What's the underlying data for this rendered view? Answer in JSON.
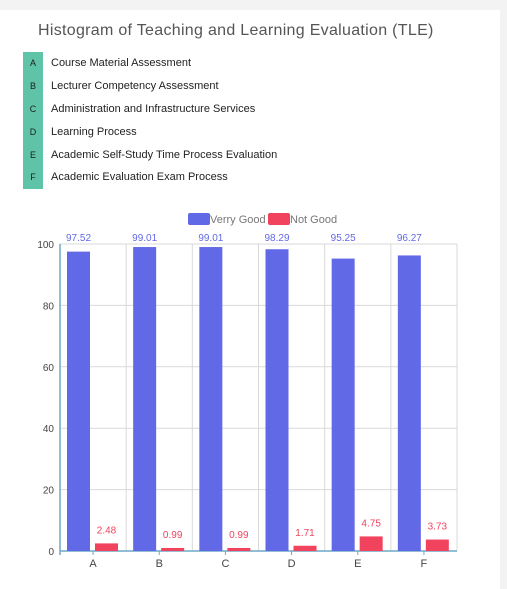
{
  "title": "Histogram of Teaching and Learning Evaluation (TLE)",
  "legend_table": [
    {
      "letter": "A",
      "text": "Course Material Assessment"
    },
    {
      "letter": "B",
      "text": "Lecturer Competency Assessment"
    },
    {
      "letter": "C",
      "text": "Administration and Infrastructure Services"
    },
    {
      "letter": "D",
      "text": "Learning Process"
    },
    {
      "letter": "E",
      "text": "Academic Self-Study Time Process Evaluation"
    },
    {
      "letter": "F",
      "text": "Academic Evaluation Exam Process"
    }
  ],
  "colors": {
    "very_good": "#6269e6",
    "not_good": "#f2435e",
    "legend_letter_bg": "#5fc3a8",
    "grid": "#d9d9d9",
    "axis": "#6fa9c7"
  },
  "chart_data": {
    "type": "bar",
    "categories": [
      "A",
      "B",
      "C",
      "D",
      "E",
      "F"
    ],
    "series": [
      {
        "name": "Verry Good",
        "values": [
          97.52,
          99.01,
          99.01,
          98.29,
          95.25,
          96.27
        ]
      },
      {
        "name": "Not Good",
        "values": [
          2.48,
          0.99,
          0.99,
          1.71,
          4.75,
          3.73
        ]
      }
    ],
    "ylim": [
      0,
      100
    ],
    "yticks": [
      0,
      20,
      40,
      60,
      80,
      100
    ],
    "grid": true,
    "legend": "top-center"
  }
}
